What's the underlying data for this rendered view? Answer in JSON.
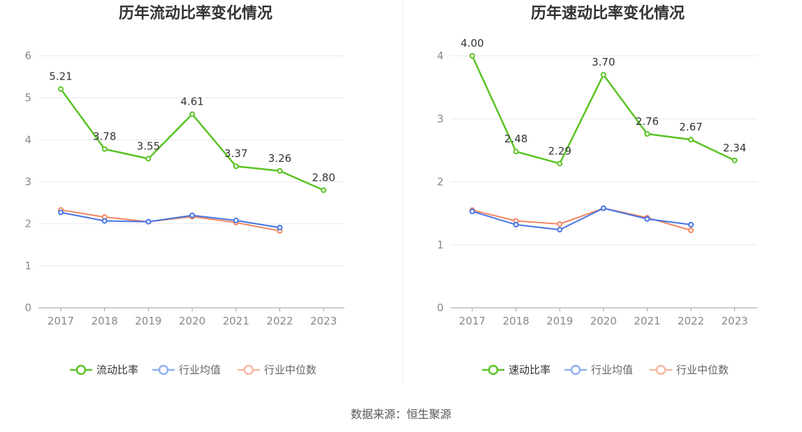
{
  "source_text": "数据来源：恒生聚源",
  "colors": {
    "main": "#5ac324",
    "avg": "#4472e6",
    "median": "#f08560",
    "avg_legend": "#8fb0f0",
    "median_legend": "#f7b7a0",
    "grid": "#e6e9f3",
    "axis": "#999999"
  },
  "chart_data": [
    {
      "type": "line",
      "title": "历年流动比率变化情况",
      "categories": [
        "2017",
        "2018",
        "2019",
        "2020",
        "2021",
        "2022",
        "2023"
      ],
      "ylim": [
        0,
        6
      ],
      "yticks": [
        0,
        1,
        2,
        3,
        4,
        5,
        6
      ],
      "grid": true,
      "legend_position": "bottom",
      "series": [
        {
          "name": "流动比率",
          "values": [
            5.21,
            3.78,
            3.55,
            4.61,
            3.37,
            3.26,
            2.8
          ],
          "labels": [
            "5.21",
            "3.78",
            "3.55",
            "4.61",
            "3.37",
            "3.26",
            "2.80"
          ]
        },
        {
          "name": "行业均值",
          "values": [
            2.27,
            2.07,
            2.05,
            2.2,
            2.08,
            1.91,
            null
          ]
        },
        {
          "name": "行业中位数",
          "values": [
            2.33,
            2.16,
            2.05,
            2.17,
            2.03,
            1.83,
            null
          ]
        }
      ]
    },
    {
      "type": "line",
      "title": "历年速动比率变化情况",
      "categories": [
        "2017",
        "2018",
        "2019",
        "2020",
        "2021",
        "2022",
        "2023"
      ],
      "ylim": [
        0,
        4
      ],
      "yticks": [
        0,
        1,
        2,
        3,
        4
      ],
      "grid": true,
      "legend_position": "bottom",
      "series": [
        {
          "name": "速动比率",
          "values": [
            4.0,
            2.48,
            2.29,
            3.7,
            2.76,
            2.67,
            2.34
          ],
          "labels": [
            "4.00",
            "2.48",
            "2.29",
            "3.70",
            "2.76",
            "2.67",
            "2.34"
          ]
        },
        {
          "name": "行业均值",
          "values": [
            1.53,
            1.32,
            1.24,
            1.58,
            1.41,
            1.32,
            null
          ]
        },
        {
          "name": "行业中位数",
          "values": [
            1.55,
            1.38,
            1.33,
            1.58,
            1.43,
            1.23,
            null
          ]
        }
      ]
    }
  ]
}
